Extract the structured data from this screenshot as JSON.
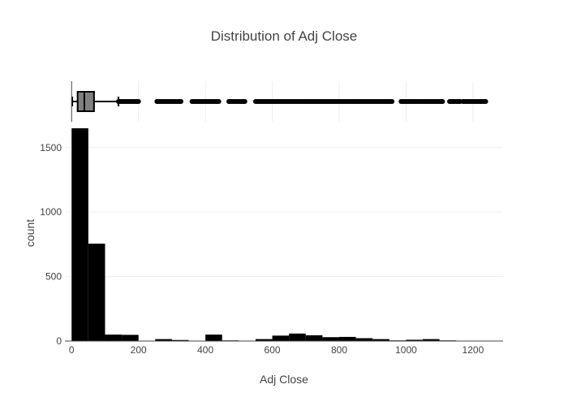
{
  "chart_data": {
    "type": "histogram",
    "title": "Distribution of Adj Close",
    "xlabel": "Adj Close",
    "ylabel": "count",
    "bar_color": "#000000",
    "box_fill": "#808080",
    "xlim": [
      -20,
      1290
    ],
    "ylim": [
      0,
      1700
    ],
    "xticks": [
      0,
      200,
      400,
      600,
      800,
      1000,
      1200
    ],
    "yticks": [
      0,
      500,
      1000,
      1500
    ],
    "grid": true,
    "bins": [
      {
        "x0": 0,
        "x1": 50,
        "count": 1650
      },
      {
        "x0": 50,
        "x1": 100,
        "count": 755
      },
      {
        "x0": 100,
        "x1": 150,
        "count": 50
      },
      {
        "x0": 150,
        "x1": 200,
        "count": 48
      },
      {
        "x0": 200,
        "x1": 250,
        "count": 3
      },
      {
        "x0": 250,
        "x1": 300,
        "count": 15
      },
      {
        "x0": 300,
        "x1": 350,
        "count": 8
      },
      {
        "x0": 350,
        "x1": 400,
        "count": 3
      },
      {
        "x0": 400,
        "x1": 450,
        "count": 50
      },
      {
        "x0": 450,
        "x1": 500,
        "count": 5
      },
      {
        "x0": 500,
        "x1": 550,
        "count": 2
      },
      {
        "x0": 550,
        "x1": 600,
        "count": 15
      },
      {
        "x0": 600,
        "x1": 650,
        "count": 42
      },
      {
        "x0": 650,
        "x1": 700,
        "count": 58
      },
      {
        "x0": 700,
        "x1": 750,
        "count": 45
      },
      {
        "x0": 750,
        "x1": 800,
        "count": 30
      },
      {
        "x0": 800,
        "x1": 850,
        "count": 32
      },
      {
        "x0": 850,
        "x1": 900,
        "count": 22
      },
      {
        "x0": 900,
        "x1": 950,
        "count": 15
      },
      {
        "x0": 950,
        "x1": 1000,
        "count": 5
      },
      {
        "x0": 1000,
        "x1": 1050,
        "count": 10
      },
      {
        "x0": 1050,
        "x1": 1100,
        "count": 15
      },
      {
        "x0": 1100,
        "x1": 1150,
        "count": 5
      },
      {
        "x0": 1150,
        "x1": 1200,
        "count": 3
      },
      {
        "x0": 1200,
        "x1": 1250,
        "count": 3
      }
    ],
    "marginal_box": {
      "min": 2,
      "q1": 18,
      "median": 38,
      "q3": 67,
      "upper_fence": 140,
      "outlier_ranges": [
        [
          140,
          200
        ],
        [
          255,
          330
        ],
        [
          360,
          440
        ],
        [
          470,
          520
        ],
        [
          550,
          960
        ],
        [
          985,
          1110
        ],
        [
          1130,
          1165
        ],
        [
          1170,
          1240
        ]
      ]
    }
  }
}
